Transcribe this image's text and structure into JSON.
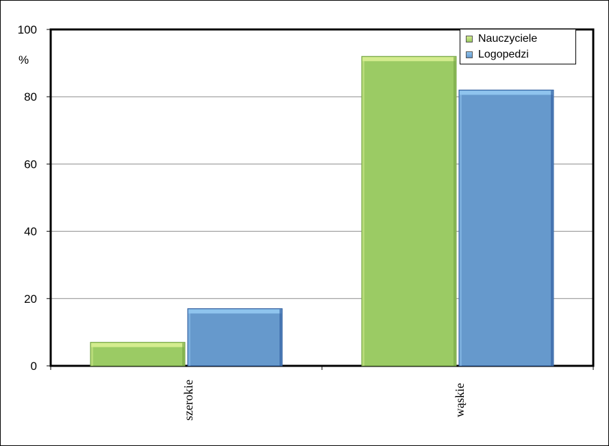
{
  "chart_data": {
    "type": "bar",
    "categories": [
      "szerokie",
      "wąskie"
    ],
    "series": [
      {
        "name": "Nauczyciele",
        "values": [
          7,
          92
        ]
      },
      {
        "name": "Logopedzi",
        "values": [
          17,
          82
        ]
      }
    ],
    "ylabel": "%",
    "ylim": [
      0,
      100
    ],
    "yticks": [
      "0",
      "20",
      "40",
      "60",
      "80",
      "100"
    ],
    "grid": true,
    "legend_position": "top-right",
    "colors": {
      "Nauczyciele": "#9bcb64",
      "Nauczyciele_top": "#d4ec8e",
      "Logopedzi": "#6699cc",
      "Logopedzi_top": "#8fc4ee",
      "Logopedzi_edge": "#2e5c9e",
      "Nauczyciele_edge": "#74a344"
    }
  }
}
